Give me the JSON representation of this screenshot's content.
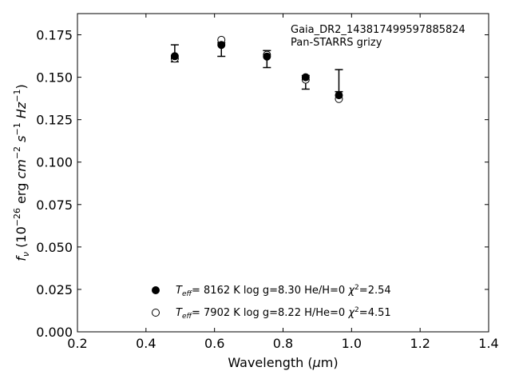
{
  "chart_data": {
    "type": "scatter",
    "annotation": [
      "Gaia_DR2_1438174995978858​24",
      "Pan-STARRS grizy"
    ],
    "xlabel": "Wavelength (μm)",
    "ylabel": "f_ν (10^-26 erg cm^-2 s^-1 Hz^-1)",
    "xlim": [
      0.2,
      1.4
    ],
    "ylim": [
      0.0,
      0.1875
    ],
    "xticks": [
      "0.2",
      "0.4",
      "0.6",
      "0.8",
      "1.0",
      "1.2",
      "1.4"
    ],
    "yticks": [
      "0.000",
      "0.025",
      "0.050",
      "0.075",
      "0.100",
      "0.125",
      "0.150",
      "0.175"
    ],
    "grid": false,
    "legend_position": "bottom-center",
    "observed": {
      "x": [
        0.484,
        0.62,
        0.753,
        0.866,
        0.963
      ],
      "y": [
        0.1641,
        0.1663,
        0.1607,
        0.147,
        0.148
      ],
      "err": [
        0.005,
        0.004,
        0.005,
        0.004,
        0.0065
      ]
    },
    "series": [
      {
        "name": "T_eff= 8162 K log g=8.30 He/H=0 χ²=2.54",
        "marker": "filled-circle",
        "x": [
          0.484,
          0.62,
          0.753,
          0.866,
          0.963
        ],
        "y": [
          0.1624,
          0.169,
          0.1622,
          0.15,
          0.1394
        ]
      },
      {
        "name": "T_eff= 7902 K log g=8.22 H/He=0 χ²=4.51",
        "marker": "open-circle",
        "x": [
          0.484,
          0.62,
          0.753,
          0.866,
          0.963
        ],
        "y": [
          0.161,
          0.172,
          0.1632,
          0.1486,
          0.1372
        ]
      }
    ],
    "legend": [
      {
        "teff": "8162",
        "logg": "8.30",
        "comp_label": "He/H=0",
        "chi2": "2.54"
      },
      {
        "teff": "7902",
        "logg": "8.22",
        "comp_label": "H/He=0",
        "chi2": "4.51"
      }
    ]
  }
}
